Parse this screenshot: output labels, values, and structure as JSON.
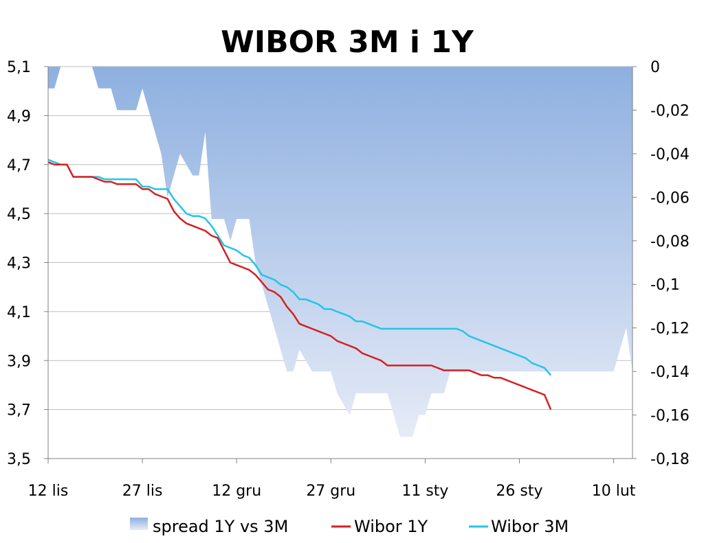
{
  "chart_data": {
    "type": "line",
    "title": "WIBOR 3M i 1Y",
    "x_tick_labels": [
      "12 lis",
      "27 lis",
      "12 gru",
      "27 gru",
      "11 sty",
      "26 sty",
      "10 lut"
    ],
    "y_left": {
      "ticks": [
        "5,1",
        "4,9",
        "4,7",
        "4,5",
        "4,3",
        "4,1",
        "3,9",
        "3,7",
        "3,5"
      ],
      "ylim": [
        3.5,
        5.1
      ]
    },
    "y_right": {
      "ticks": [
        "0",
        "-0,02",
        "-0,04",
        "-0,06",
        "-0,08",
        "-0,1",
        "-0,12",
        "-0,14",
        "-0,16",
        "-0,18"
      ],
      "ylim": [
        -0.18,
        0
      ]
    },
    "x_day_range": [
      0,
      93
    ],
    "legend_position": "bottom",
    "grid": "horizontal",
    "series": [
      {
        "name": "spread 1Y vs 3M",
        "type": "area",
        "axis": "right",
        "color": "#8eb0e0",
        "points": [
          [
            0,
            -0.01
          ],
          [
            1,
            -0.01
          ],
          [
            2,
            0
          ],
          [
            3,
            0
          ],
          [
            4,
            0
          ],
          [
            5,
            0
          ],
          [
            6,
            0
          ],
          [
            7,
            0
          ],
          [
            8,
            -0.01
          ],
          [
            9,
            -0.01
          ],
          [
            10,
            -0.01
          ],
          [
            11,
            -0.02
          ],
          [
            12,
            -0.02
          ],
          [
            13,
            -0.02
          ],
          [
            14,
            -0.02
          ],
          [
            15,
            -0.01
          ],
          [
            16,
            -0.02
          ],
          [
            17,
            -0.03
          ],
          [
            18,
            -0.04
          ],
          [
            19,
            -0.06
          ],
          [
            20,
            -0.05
          ],
          [
            21,
            -0.04
          ],
          [
            22,
            -0.045
          ],
          [
            23,
            -0.05
          ],
          [
            24,
            -0.05
          ],
          [
            25,
            -0.03
          ],
          [
            26,
            -0.07
          ],
          [
            27,
            -0.07
          ],
          [
            28,
            -0.07
          ],
          [
            29,
            -0.08
          ],
          [
            30,
            -0.07
          ],
          [
            31,
            -0.07
          ],
          [
            32,
            -0.07
          ],
          [
            33,
            -0.09
          ],
          [
            34,
            -0.1
          ],
          [
            35,
            -0.11
          ],
          [
            36,
            -0.12
          ],
          [
            37,
            -0.13
          ],
          [
            38,
            -0.14
          ],
          [
            39,
            -0.14
          ],
          [
            40,
            -0.13
          ],
          [
            41,
            -0.135
          ],
          [
            42,
            -0.14
          ],
          [
            43,
            -0.14
          ],
          [
            44,
            -0.14
          ],
          [
            45,
            -0.14
          ],
          [
            46,
            -0.15
          ],
          [
            47,
            -0.155
          ],
          [
            48,
            -0.16
          ],
          [
            49,
            -0.15
          ],
          [
            50,
            -0.15
          ],
          [
            51,
            -0.15
          ],
          [
            52,
            -0.15
          ],
          [
            53,
            -0.15
          ],
          [
            54,
            -0.15
          ],
          [
            55,
            -0.16
          ],
          [
            56,
            -0.17
          ],
          [
            57,
            -0.17
          ],
          [
            58,
            -0.17
          ],
          [
            59,
            -0.16
          ],
          [
            60,
            -0.16
          ],
          [
            61,
            -0.15
          ],
          [
            62,
            -0.15
          ],
          [
            63,
            -0.15
          ],
          [
            64,
            -0.14
          ],
          [
            65,
            -0.14
          ],
          [
            66,
            -0.14
          ],
          [
            67,
            -0.14
          ],
          [
            68,
            -0.14
          ],
          [
            69,
            -0.14
          ],
          [
            70,
            -0.14
          ],
          [
            71,
            -0.14
          ],
          [
            72,
            -0.14
          ],
          [
            73,
            -0.14
          ],
          [
            74,
            -0.14
          ],
          [
            75,
            -0.14
          ],
          [
            76,
            -0.14
          ],
          [
            77,
            -0.14
          ],
          [
            78,
            -0.14
          ],
          [
            79,
            -0.14
          ],
          [
            80,
            -0.14
          ],
          [
            81,
            -0.14
          ],
          [
            82,
            -0.14
          ],
          [
            83,
            -0.14
          ],
          [
            84,
            -0.14
          ],
          [
            85,
            -0.14
          ],
          [
            86,
            -0.14
          ],
          [
            87,
            -0.14
          ],
          [
            88,
            -0.14
          ],
          [
            89,
            -0.14
          ],
          [
            90,
            -0.14
          ],
          [
            91,
            -0.13
          ],
          [
            92,
            -0.12
          ],
          [
            93,
            -0.14
          ]
        ]
      },
      {
        "name": "Wibor 1Y",
        "type": "line",
        "axis": "left",
        "color": "#d42020",
        "points": [
          [
            0,
            4.71
          ],
          [
            1,
            4.7
          ],
          [
            2,
            4.7
          ],
          [
            3,
            4.7
          ],
          [
            4,
            4.65
          ],
          [
            5,
            4.65
          ],
          [
            6,
            4.65
          ],
          [
            7,
            4.65
          ],
          [
            8,
            4.64
          ],
          [
            9,
            4.63
          ],
          [
            10,
            4.63
          ],
          [
            11,
            4.62
          ],
          [
            12,
            4.62
          ],
          [
            13,
            4.62
          ],
          [
            14,
            4.62
          ],
          [
            15,
            4.6
          ],
          [
            16,
            4.6
          ],
          [
            17,
            4.58
          ],
          [
            18,
            4.57
          ],
          [
            19,
            4.56
          ],
          [
            20,
            4.51
          ],
          [
            21,
            4.48
          ],
          [
            22,
            4.46
          ],
          [
            23,
            4.45
          ],
          [
            24,
            4.44
          ],
          [
            25,
            4.43
          ],
          [
            26,
            4.41
          ],
          [
            27,
            4.4
          ],
          [
            28,
            4.35
          ],
          [
            29,
            4.3
          ],
          [
            30,
            4.29
          ],
          [
            31,
            4.28
          ],
          [
            32,
            4.27
          ],
          [
            33,
            4.25
          ],
          [
            34,
            4.22
          ],
          [
            35,
            4.19
          ],
          [
            36,
            4.18
          ],
          [
            37,
            4.16
          ],
          [
            38,
            4.12
          ],
          [
            39,
            4.09
          ],
          [
            40,
            4.05
          ],
          [
            41,
            4.04
          ],
          [
            42,
            4.03
          ],
          [
            43,
            4.02
          ],
          [
            44,
            4.01
          ],
          [
            45,
            4.0
          ],
          [
            46,
            3.98
          ],
          [
            47,
            3.97
          ],
          [
            48,
            3.96
          ],
          [
            49,
            3.95
          ],
          [
            50,
            3.93
          ],
          [
            51,
            3.92
          ],
          [
            52,
            3.91
          ],
          [
            53,
            3.9
          ],
          [
            54,
            3.88
          ],
          [
            55,
            3.88
          ],
          [
            56,
            3.88
          ],
          [
            57,
            3.88
          ],
          [
            58,
            3.88
          ],
          [
            59,
            3.88
          ],
          [
            60,
            3.88
          ],
          [
            61,
            3.88
          ],
          [
            62,
            3.87
          ],
          [
            63,
            3.86
          ],
          [
            64,
            3.86
          ],
          [
            65,
            3.86
          ],
          [
            66,
            3.86
          ],
          [
            67,
            3.86
          ],
          [
            68,
            3.85
          ],
          [
            69,
            3.84
          ],
          [
            70,
            3.84
          ],
          [
            71,
            3.83
          ],
          [
            72,
            3.83
          ],
          [
            73,
            3.82
          ],
          [
            74,
            3.81
          ],
          [
            75,
            3.8
          ],
          [
            76,
            3.79
          ],
          [
            77,
            3.78
          ],
          [
            78,
            3.77
          ],
          [
            79,
            3.76
          ],
          [
            80,
            3.7
          ]
        ]
      },
      {
        "name": "Wibor 3M",
        "type": "line",
        "axis": "left",
        "color": "#22c4ec",
        "points": [
          [
            0,
            4.72
          ],
          [
            1,
            4.71
          ],
          [
            2,
            4.7
          ],
          [
            3,
            4.7
          ],
          [
            4,
            4.65
          ],
          [
            5,
            4.65
          ],
          [
            6,
            4.65
          ],
          [
            7,
            4.65
          ],
          [
            8,
            4.65
          ],
          [
            9,
            4.64
          ],
          [
            10,
            4.64
          ],
          [
            11,
            4.64
          ],
          [
            12,
            4.64
          ],
          [
            13,
            4.64
          ],
          [
            14,
            4.64
          ],
          [
            15,
            4.61
          ],
          [
            16,
            4.61
          ],
          [
            17,
            4.6
          ],
          [
            18,
            4.6
          ],
          [
            19,
            4.6
          ],
          [
            20,
            4.56
          ],
          [
            21,
            4.53
          ],
          [
            22,
            4.5
          ],
          [
            23,
            4.49
          ],
          [
            24,
            4.49
          ],
          [
            25,
            4.48
          ],
          [
            26,
            4.45
          ],
          [
            27,
            4.41
          ],
          [
            28,
            4.37
          ],
          [
            29,
            4.36
          ],
          [
            30,
            4.35
          ],
          [
            31,
            4.33
          ],
          [
            32,
            4.32
          ],
          [
            33,
            4.29
          ],
          [
            34,
            4.25
          ],
          [
            35,
            4.24
          ],
          [
            36,
            4.23
          ],
          [
            37,
            4.21
          ],
          [
            38,
            4.2
          ],
          [
            39,
            4.18
          ],
          [
            40,
            4.15
          ],
          [
            41,
            4.15
          ],
          [
            42,
            4.14
          ],
          [
            43,
            4.13
          ],
          [
            44,
            4.11
          ],
          [
            45,
            4.11
          ],
          [
            46,
            4.1
          ],
          [
            47,
            4.09
          ],
          [
            48,
            4.08
          ],
          [
            49,
            4.06
          ],
          [
            50,
            4.06
          ],
          [
            51,
            4.05
          ],
          [
            52,
            4.04
          ],
          [
            53,
            4.03
          ],
          [
            54,
            4.03
          ],
          [
            55,
            4.03
          ],
          [
            56,
            4.03
          ],
          [
            57,
            4.03
          ],
          [
            58,
            4.03
          ],
          [
            59,
            4.03
          ],
          [
            60,
            4.03
          ],
          [
            61,
            4.03
          ],
          [
            62,
            4.03
          ],
          [
            63,
            4.03
          ],
          [
            64,
            4.03
          ],
          [
            65,
            4.03
          ],
          [
            66,
            4.02
          ],
          [
            67,
            4.0
          ],
          [
            68,
            3.99
          ],
          [
            69,
            3.98
          ],
          [
            70,
            3.97
          ],
          [
            71,
            3.96
          ],
          [
            72,
            3.95
          ],
          [
            73,
            3.94
          ],
          [
            74,
            3.93
          ],
          [
            75,
            3.92
          ],
          [
            76,
            3.91
          ],
          [
            77,
            3.89
          ],
          [
            78,
            3.88
          ],
          [
            79,
            3.87
          ],
          [
            80,
            3.84
          ]
        ]
      }
    ]
  }
}
